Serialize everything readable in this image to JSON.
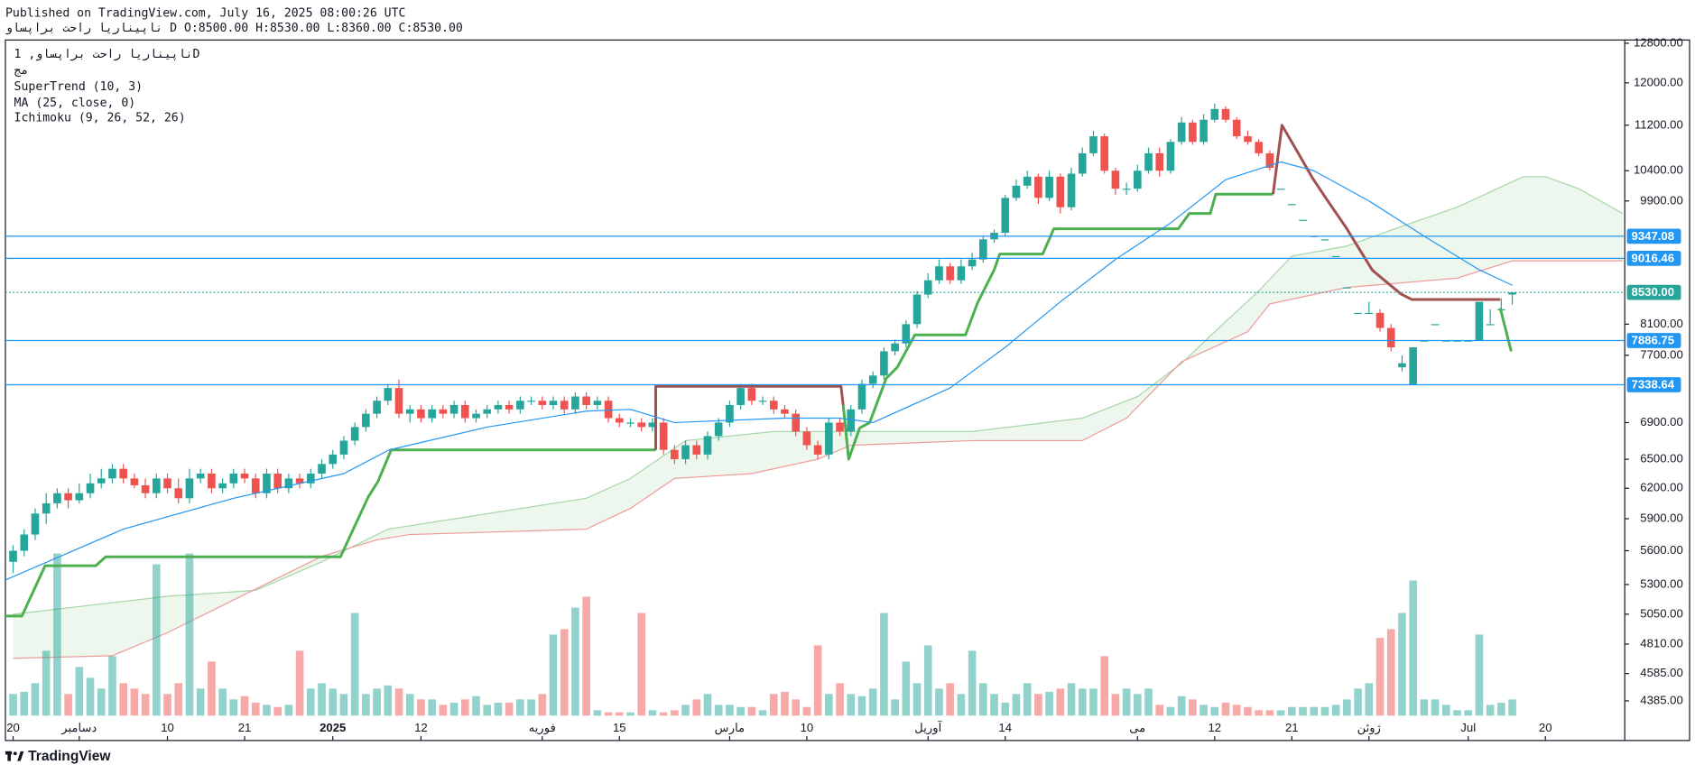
{
  "header": {
    "published": "Published on TradingView.com, July 16, 2025 08:00:26 UTC",
    "symbol_line": "ناپیناریا راحت براپساو D O:8500.00 H:8530.00 L:8360.00 C:8530.00"
  },
  "footer": {
    "brand": "TradingView"
  },
  "chart_data": {
    "type": "candlestick",
    "title": "ناپیناریا راحت براپساو, 1D",
    "subtitle": "مج",
    "indicators": [
      "SuperTrend (10, 3)",
      "MA (25, close, 0)",
      "Ichimoku (9, 26, 52, 26)"
    ],
    "log_scale": true,
    "grid": false,
    "up_color": "#26a69a",
    "down_color": "#ef5350",
    "xlim": [
      -0.7,
      146.2
    ],
    "ylim": [
      4281,
      12868
    ],
    "xticks": [
      {
        "value": 0,
        "label": "20"
      },
      {
        "value": 6,
        "label": "دسامبر"
      },
      {
        "value": 14,
        "label": "10"
      },
      {
        "value": 21,
        "label": "21"
      },
      {
        "value": 29,
        "label": "2025"
      },
      {
        "value": 37,
        "label": "12"
      },
      {
        "value": 48,
        "label": "فوریه"
      },
      {
        "value": 55,
        "label": "15"
      },
      {
        "value": 65,
        "label": "مارس"
      },
      {
        "value": 72,
        "label": "10"
      },
      {
        "value": 83,
        "label": "آوریل"
      },
      {
        "value": 90,
        "label": "14"
      },
      {
        "value": 102,
        "label": "می"
      },
      {
        "value": 109,
        "label": "12"
      },
      {
        "value": 116,
        "label": "21"
      },
      {
        "value": 123,
        "label": "ژوئن"
      },
      {
        "value": 132,
        "label": "Jul"
      },
      {
        "value": 139,
        "label": "20"
      }
    ],
    "yticks": [
      {
        "value": 12800,
        "label": "12800.00"
      },
      {
        "value": 12000,
        "label": "12000.00"
      },
      {
        "value": 11200,
        "label": "11200.00"
      },
      {
        "value": 10400,
        "label": "10400.00"
      },
      {
        "value": 9900,
        "label": "9900.00"
      },
      {
        "value": 8100,
        "label": "8100.00"
      },
      {
        "value": 7700,
        "label": "7700.00"
      },
      {
        "value": 6900,
        "label": "6900.00"
      },
      {
        "value": 6500,
        "label": "6500.00"
      },
      {
        "value": 6200,
        "label": "6200.00"
      },
      {
        "value": 5900,
        "label": "5900.00"
      },
      {
        "value": 5600,
        "label": "5600.00"
      },
      {
        "value": 5300,
        "label": "5300.00"
      },
      {
        "value": 5050,
        "label": "5050.00"
      },
      {
        "value": 4810,
        "label": "4810.00"
      },
      {
        "value": 4585,
        "label": "4585.00"
      },
      {
        "value": 4385,
        "label": "4385.00"
      }
    ],
    "open": [
      5500,
      5600,
      5750,
      5950,
      6050,
      6150,
      6080,
      6150,
      6250,
      6300,
      6400,
      6300,
      6230,
      6150,
      6300,
      6200,
      6100,
      6300,
      6350,
      6200,
      6250,
      6350,
      6300,
      6150,
      6350,
      6200,
      6300,
      6250,
      6350,
      6450,
      6550,
      6700,
      6850,
      7000,
      7150,
      7300,
      7000,
      7050,
      6950,
      7050,
      7000,
      7100,
      6950,
      7000,
      7050,
      7100,
      7050,
      7150,
      7150,
      7100,
      7150,
      7050,
      7200,
      7100,
      7150,
      6950,
      6900,
      6900,
      6850,
      6900,
      6600,
      6500,
      6650,
      6550,
      6750,
      6900,
      7100,
      7300,
      7150,
      7150,
      7050,
      7000,
      6800,
      6650,
      6550,
      6900,
      6800,
      7050,
      7350,
      7450,
      7750,
      7850,
      8100,
      8500,
      8700,
      8900,
      8700,
      8900,
      9000,
      9300,
      9400,
      9950,
      10150,
      10300,
      9950,
      10300,
      9800,
      10350,
      10700,
      11000,
      10400,
      10100,
      10100,
      10400,
      10700,
      10400,
      10900,
      11250,
      10900,
      11300,
      11500,
      11300,
      11000,
      10900,
      10700,
      10100,
      9850,
      9600,
      9350,
      9300,
      9050,
      8600,
      8250,
      8250,
      8250,
      8050,
      7550,
      7338,
      7886,
      8100,
      7886,
      7886,
      7886,
      7886,
      8100,
      8300,
      8500
    ],
    "high": [
      5650,
      5800,
      6000,
      6150,
      6200,
      6200,
      6250,
      6350,
      6400,
      6450,
      6450,
      6350,
      6300,
      6350,
      6350,
      6300,
      6400,
      6400,
      6400,
      6300,
      6400,
      6400,
      6350,
      6400,
      6400,
      6350,
      6350,
      6400,
      6500,
      6600,
      6750,
      6900,
      7050,
      7200,
      7350,
      7400,
      7100,
      7100,
      7100,
      7100,
      7150,
      7150,
      7050,
      7100,
      7150,
      7150,
      7200,
      7200,
      7200,
      7200,
      7200,
      7250,
      7250,
      7200,
      7200,
      7000,
      6950,
      6950,
      6950,
      6950,
      6650,
      6700,
      6700,
      6800,
      6950,
      7150,
      7350,
      7350,
      7200,
      7200,
      7100,
      7050,
      6850,
      6700,
      6950,
      6950,
      7100,
      7400,
      7500,
      7800,
      7900,
      8150,
      8550,
      8800,
      9000,
      8950,
      9000,
      9100,
      9350,
      9450,
      10000,
      10250,
      10400,
      10350,
      10400,
      10350,
      10450,
      10800,
      11100,
      11050,
      10450,
      10200,
      10500,
      10800,
      10800,
      10950,
      11350,
      11300,
      11400,
      11600,
      11550,
      11350,
      11100,
      10950,
      10750,
      10100,
      9850,
      9600,
      9350,
      9300,
      9050,
      8600,
      8250,
      8400,
      8300,
      8100,
      7700,
      7800,
      7886,
      8100,
      7886,
      7886,
      7886,
      8400,
      8300,
      8450,
      8530
    ],
    "low": [
      5400,
      5550,
      5700,
      5850,
      6000,
      6000,
      6050,
      6100,
      6200,
      6250,
      6250,
      6200,
      6100,
      6100,
      6150,
      6050,
      6050,
      6250,
      6150,
      6150,
      6200,
      6250,
      6100,
      6100,
      6150,
      6150,
      6200,
      6200,
      6300,
      6400,
      6500,
      6650,
      6800,
      6950,
      7100,
      6950,
      6900,
      6900,
      6900,
      6950,
      6950,
      6900,
      6900,
      6950,
      7000,
      7000,
      7000,
      7100,
      7050,
      7050,
      7000,
      7000,
      7050,
      7050,
      6900,
      6850,
      6850,
      6800,
      6800,
      6550,
      6450,
      6450,
      6500,
      6500,
      6700,
      6850,
      7050,
      7100,
      7100,
      7000,
      6950,
      6750,
      6600,
      6500,
      6500,
      6750,
      6750,
      7000,
      7300,
      7400,
      7700,
      7800,
      8050,
      8450,
      8650,
      8650,
      8650,
      8850,
      8950,
      9250,
      9350,
      9900,
      10100,
      9850,
      9900,
      9700,
      9750,
      10300,
      10650,
      10350,
      10000,
      10000,
      10050,
      10350,
      10300,
      10350,
      10850,
      10850,
      10850,
      11250,
      11250,
      10950,
      10850,
      10650,
      10400,
      10100,
      9850,
      9600,
      9350,
      9300,
      9050,
      8600,
      8250,
      8250,
      8000,
      7750,
      7500,
      7338,
      7886,
      8100,
      7886,
      7886,
      7886,
      7886,
      8100,
      8300,
      8360
    ],
    "close": [
      5600,
      5750,
      5950,
      6050,
      6150,
      6080,
      6150,
      6250,
      6300,
      6400,
      6300,
      6230,
      6150,
      6300,
      6200,
      6100,
      6300,
      6350,
      6200,
      6250,
      6350,
      6300,
      6150,
      6350,
      6200,
      6300,
      6250,
      6350,
      6450,
      6550,
      6700,
      6850,
      7000,
      7150,
      7300,
      7000,
      7050,
      6950,
      7050,
      7000,
      7100,
      6950,
      7000,
      7050,
      7100,
      7050,
      7150,
      7150,
      7100,
      7150,
      7050,
      7200,
      7100,
      7150,
      6950,
      6900,
      6900,
      6850,
      6900,
      6600,
      6500,
      6650,
      6550,
      6750,
      6900,
      7100,
      7300,
      7150,
      7150,
      7050,
      7000,
      6800,
      6650,
      6550,
      6900,
      6800,
      7050,
      7350,
      7450,
      7750,
      7850,
      8100,
      8500,
      8700,
      8900,
      8700,
      8900,
      9000,
      9300,
      9400,
      9950,
      10150,
      10300,
      9950,
      10300,
      9800,
      10350,
      10700,
      11000,
      10400,
      10100,
      10100,
      10400,
      10700,
      10400,
      10900,
      11250,
      10900,
      11300,
      11500,
      11300,
      11000,
      10900,
      10700,
      10450,
      10100,
      9850,
      9600,
      9350,
      9300,
      9050,
      8600,
      8250,
      8250,
      8050,
      7800,
      7600,
      7800,
      7886,
      8100,
      7886,
      7886,
      7886,
      8400,
      8100,
      8300,
      8530
    ],
    "volume": [
      20,
      22,
      30,
      60,
      150,
      20,
      45,
      35,
      25,
      55,
      30,
      25,
      20,
      140,
      20,
      30,
      150,
      25,
      50,
      25,
      15,
      18,
      12,
      10,
      8,
      10,
      60,
      25,
      30,
      25,
      20,
      95,
      20,
      25,
      28,
      25,
      20,
      15,
      15,
      10,
      12,
      15,
      18,
      10,
      12,
      12,
      15,
      15,
      20,
      75,
      80,
      100,
      110,
      5,
      3,
      3,
      3,
      95,
      5,
      3,
      5,
      10,
      15,
      20,
      10,
      10,
      8,
      8,
      5,
      20,
      22,
      15,
      8,
      65,
      20,
      30,
      20,
      18,
      25,
      95,
      15,
      50,
      30,
      65,
      25,
      30,
      20,
      60,
      30,
      20,
      12,
      20,
      30,
      20,
      22,
      25,
      30,
      25,
      25,
      55,
      20,
      25,
      20,
      25,
      10,
      8,
      18,
      15,
      10,
      8,
      12,
      10,
      8,
      5,
      5,
      5,
      8,
      8,
      8,
      8,
      10,
      15,
      25,
      30,
      72,
      80,
      95,
      125,
      15,
      15,
      10,
      5,
      5,
      75,
      10,
      12,
      15
    ],
    "overlays": [
      {
        "kind": "line",
        "color": "#4caf50",
        "x": [
          -0.7,
          0.8,
          2.9,
          7.5,
          8.4,
          29.7,
          32.2,
          33.1,
          34.3,
          58.3
        ],
        "values": [
          5035,
          5035,
          5465,
          5465,
          5545,
          5545,
          6110,
          6270,
          6600,
          6600
        ]
      },
      {
        "kind": "line",
        "color": "#a0504e",
        "x": [
          58.3,
          58.3,
          75.1,
          75.3
        ],
        "values": [
          6600,
          7320,
          7320,
          7100
        ]
      },
      {
        "kind": "line",
        "color": "#4caf50",
        "x": [
          75.3,
          75.8,
          76.8,
          77.7,
          79.2,
          80.2,
          81.8,
          86.4,
          87.5,
          89,
          89.5,
          93.4,
          94.4,
          105.7,
          106.7,
          108.6,
          109.1,
          114.3
        ],
        "values": [
          7100,
          6500,
          6840,
          6900,
          7415,
          7550,
          7960,
          7960,
          8390,
          8850,
          9080,
          9080,
          9460,
          9460,
          9700,
          9700,
          10010,
          10010
        ]
      },
      {
        "kind": "line",
        "color": "#a0504e",
        "x": [
          114.3,
          115.1,
          116.5,
          117.9,
          119.2,
          120.9,
          123.3,
          125.9,
          126.9,
          134.9
        ],
        "values": [
          10010,
          11200,
          10730,
          10270,
          9915,
          9485,
          8845,
          8507,
          8432,
          8432
        ]
      },
      {
        "kind": "line",
        "color": "#4caf50",
        "x": [
          134.9,
          135.9
        ],
        "values": [
          8315,
          7750
        ]
      },
      {
        "kind": "ma",
        "color": "#2196f3",
        "x": [
          -0.7,
          10,
          20,
          30,
          34.1,
          43,
          52,
          56,
          60,
          70,
          75,
          78,
          85,
          90,
          95,
          100,
          105,
          110,
          115,
          118,
          123,
          128,
          133,
          136
        ],
        "values": [
          5340,
          5800,
          6100,
          6350,
          6600,
          6850,
          7030,
          7050,
          6900,
          6950,
          6950,
          6900,
          7300,
          7800,
          8400,
          9000,
          9550,
          10250,
          10550,
          10400,
          9900,
          9350,
          8850,
          8630
        ]
      }
    ],
    "cloud": {
      "fill": "#4caf50",
      "span_a": {
        "color": "#a5d6a7",
        "x": [
          0,
          14,
          22,
          28,
          34,
          52,
          56,
          61,
          69,
          76,
          87,
          97,
          102,
          106,
          109,
          113,
          116,
          121,
          126,
          131,
          137,
          139,
          142,
          146
        ],
        "values": [
          5050,
          5200,
          5250,
          5500,
          5800,
          6100,
          6300,
          6700,
          6800,
          6800,
          6800,
          6950,
          7200,
          7600,
          8000,
          8550,
          9050,
          9200,
          9500,
          9800,
          10300,
          10300,
          10100,
          9700
        ]
      },
      "span_b": {
        "color": "#ef9a9a",
        "x": [
          0,
          9,
          14,
          28,
          33,
          36,
          52,
          56,
          60,
          67,
          73,
          76,
          87,
          97,
          101,
          106,
          112,
          114,
          121,
          131,
          136,
          146
        ],
        "values": [
          4700,
          4720,
          4900,
          5550,
          5700,
          5750,
          5800,
          6000,
          6300,
          6350,
          6500,
          6650,
          6700,
          6700,
          6950,
          7620,
          8000,
          8370,
          8600,
          8730,
          8980,
          8980
        ]
      }
    },
    "levels": [
      {
        "value": 9347.08,
        "color": "#2196f3"
      },
      {
        "value": 9016.46,
        "color": "#2196f3"
      },
      {
        "value": 7886.75,
        "color": "#2196f3"
      },
      {
        "value": 7338.64,
        "color": "#2196f3"
      }
    ],
    "last_price": {
      "value": 8530,
      "label": "8530.00",
      "color": "#26a69a"
    }
  }
}
